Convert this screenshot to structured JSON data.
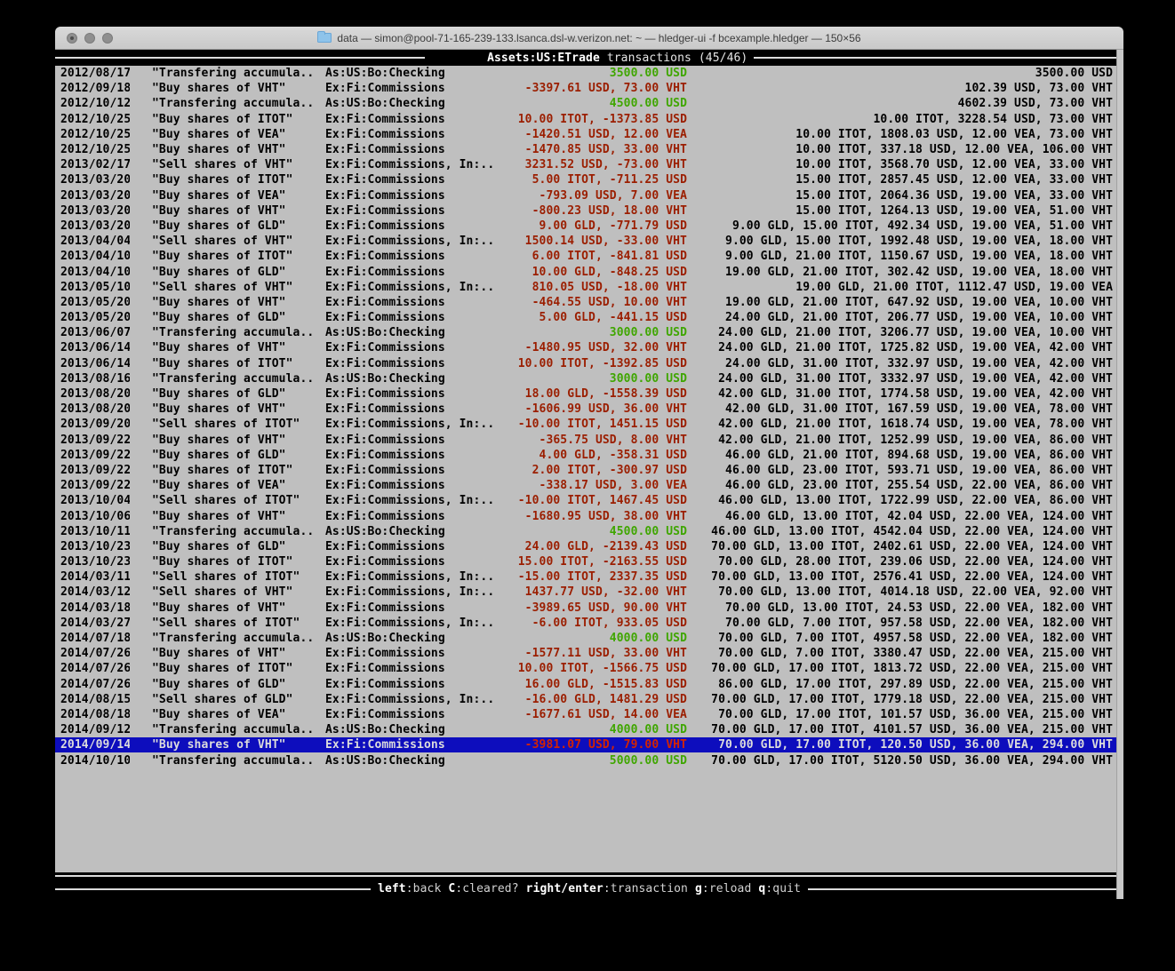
{
  "window": {
    "title": "data — simon@pool-71-165-239-133.lsanca.dsl-w.verizon.net: ~ — hledger-ui -f bcexample.hledger — 150×56",
    "buttons": [
      "close",
      "minimize",
      "zoom"
    ]
  },
  "header": {
    "account": "Assets:US:ETrade",
    "suffix": "transactions (45/46)"
  },
  "footer": {
    "hints": [
      {
        "key": "left",
        "label": ":back"
      },
      {
        "key": "C",
        "label": ":cleared?"
      },
      {
        "key": "right/enter",
        "label": ":transaction"
      },
      {
        "key": "g",
        "label": ":reload"
      },
      {
        "key": "q",
        "label": ":quit"
      }
    ]
  },
  "colors": {
    "terminal_bg": "#bfbfbf",
    "bar_bg": "#000000",
    "bar_fg": "#ffffff",
    "text": "#000000",
    "amount_positive": "#3fa600",
    "amount_negative": "#9b1e00",
    "selected_bg": "#0d0dbd",
    "selected_fg": "#dcdcdc",
    "selected_negative": "#d42400"
  },
  "transactions": [
    {
      "date": "2012/08/17",
      "description": "\"Transfering accumula..",
      "account": "As:US:Bo:Checking",
      "change": "3500.00 USD",
      "change_color": "green",
      "balance": "3500.00 USD"
    },
    {
      "date": "2012/09/18",
      "description": "\"Buy shares of VHT\"",
      "account": "Ex:Fi:Commissions",
      "change": "-3397.61 USD, 73.00 VHT",
      "change_color": "red",
      "balance": "102.39 USD, 73.00 VHT"
    },
    {
      "date": "2012/10/12",
      "description": "\"Transfering accumula..",
      "account": "As:US:Bo:Checking",
      "change": "4500.00 USD",
      "change_color": "green",
      "balance": "4602.39 USD, 73.00 VHT"
    },
    {
      "date": "2012/10/25",
      "description": "\"Buy shares of ITOT\"",
      "account": "Ex:Fi:Commissions",
      "change": "10.00 ITOT, -1373.85 USD",
      "change_color": "red",
      "balance": "10.00 ITOT, 3228.54 USD, 73.00 VHT"
    },
    {
      "date": "2012/10/25",
      "description": "\"Buy shares of VEA\"",
      "account": "Ex:Fi:Commissions",
      "change": "-1420.51 USD, 12.00 VEA",
      "change_color": "red",
      "balance": "10.00 ITOT, 1808.03 USD, 12.00 VEA, 73.00 VHT"
    },
    {
      "date": "2012/10/25",
      "description": "\"Buy shares of VHT\"",
      "account": "Ex:Fi:Commissions",
      "change": "-1470.85 USD, 33.00 VHT",
      "change_color": "red",
      "balance": "10.00 ITOT, 337.18 USD, 12.00 VEA, 106.00 VHT"
    },
    {
      "date": "2013/02/17",
      "description": "\"Sell shares of VHT\"",
      "account": "Ex:Fi:Commissions, In:..",
      "change": "3231.52 USD, -73.00 VHT",
      "change_color": "red",
      "balance": "10.00 ITOT, 3568.70 USD, 12.00 VEA, 33.00 VHT"
    },
    {
      "date": "2013/03/20",
      "description": "\"Buy shares of ITOT\"",
      "account": "Ex:Fi:Commissions",
      "change": "5.00 ITOT, -711.25 USD",
      "change_color": "red",
      "balance": "15.00 ITOT, 2857.45 USD, 12.00 VEA, 33.00 VHT"
    },
    {
      "date": "2013/03/20",
      "description": "\"Buy shares of VEA\"",
      "account": "Ex:Fi:Commissions",
      "change": "-793.09 USD, 7.00 VEA",
      "change_color": "red",
      "balance": "15.00 ITOT, 2064.36 USD, 19.00 VEA, 33.00 VHT"
    },
    {
      "date": "2013/03/20",
      "description": "\"Buy shares of VHT\"",
      "account": "Ex:Fi:Commissions",
      "change": "-800.23 USD, 18.00 VHT",
      "change_color": "red",
      "balance": "15.00 ITOT, 1264.13 USD, 19.00 VEA, 51.00 VHT"
    },
    {
      "date": "2013/03/20",
      "description": "\"Buy shares of GLD\"",
      "account": "Ex:Fi:Commissions",
      "change": "9.00 GLD, -771.79 USD",
      "change_color": "red",
      "balance": "9.00 GLD, 15.00 ITOT, 492.34 USD, 19.00 VEA, 51.00 VHT"
    },
    {
      "date": "2013/04/04",
      "description": "\"Sell shares of VHT\"",
      "account": "Ex:Fi:Commissions, In:..",
      "change": "1500.14 USD, -33.00 VHT",
      "change_color": "red",
      "balance": "9.00 GLD, 15.00 ITOT, 1992.48 USD, 19.00 VEA, 18.00 VHT"
    },
    {
      "date": "2013/04/10",
      "description": "\"Buy shares of ITOT\"",
      "account": "Ex:Fi:Commissions",
      "change": "6.00 ITOT, -841.81 USD",
      "change_color": "red",
      "balance": "9.00 GLD, 21.00 ITOT, 1150.67 USD, 19.00 VEA, 18.00 VHT"
    },
    {
      "date": "2013/04/10",
      "description": "\"Buy shares of GLD\"",
      "account": "Ex:Fi:Commissions",
      "change": "10.00 GLD, -848.25 USD",
      "change_color": "red",
      "balance": "19.00 GLD, 21.00 ITOT, 302.42 USD, 19.00 VEA, 18.00 VHT"
    },
    {
      "date": "2013/05/10",
      "description": "\"Sell shares of VHT\"",
      "account": "Ex:Fi:Commissions, In:..",
      "change": "810.05 USD, -18.00 VHT",
      "change_color": "red",
      "balance": "19.00 GLD, 21.00 ITOT, 1112.47 USD, 19.00 VEA"
    },
    {
      "date": "2013/05/20",
      "description": "\"Buy shares of VHT\"",
      "account": "Ex:Fi:Commissions",
      "change": "-464.55 USD, 10.00 VHT",
      "change_color": "red",
      "balance": "19.00 GLD, 21.00 ITOT, 647.92 USD, 19.00 VEA, 10.00 VHT"
    },
    {
      "date": "2013/05/20",
      "description": "\"Buy shares of GLD\"",
      "account": "Ex:Fi:Commissions",
      "change": "5.00 GLD, -441.15 USD",
      "change_color": "red",
      "balance": "24.00 GLD, 21.00 ITOT, 206.77 USD, 19.00 VEA, 10.00 VHT"
    },
    {
      "date": "2013/06/07",
      "description": "\"Transfering accumula..",
      "account": "As:US:Bo:Checking",
      "change": "3000.00 USD",
      "change_color": "green",
      "balance": "24.00 GLD, 21.00 ITOT, 3206.77 USD, 19.00 VEA, 10.00 VHT"
    },
    {
      "date": "2013/06/14",
      "description": "\"Buy shares of VHT\"",
      "account": "Ex:Fi:Commissions",
      "change": "-1480.95 USD, 32.00 VHT",
      "change_color": "red",
      "balance": "24.00 GLD, 21.00 ITOT, 1725.82 USD, 19.00 VEA, 42.00 VHT"
    },
    {
      "date": "2013/06/14",
      "description": "\"Buy shares of ITOT\"",
      "account": "Ex:Fi:Commissions",
      "change": "10.00 ITOT, -1392.85 USD",
      "change_color": "red",
      "balance": "24.00 GLD, 31.00 ITOT, 332.97 USD, 19.00 VEA, 42.00 VHT"
    },
    {
      "date": "2013/08/16",
      "description": "\"Transfering accumula..",
      "account": "As:US:Bo:Checking",
      "change": "3000.00 USD",
      "change_color": "green",
      "balance": "24.00 GLD, 31.00 ITOT, 3332.97 USD, 19.00 VEA, 42.00 VHT"
    },
    {
      "date": "2013/08/20",
      "description": "\"Buy shares of GLD\"",
      "account": "Ex:Fi:Commissions",
      "change": "18.00 GLD, -1558.39 USD",
      "change_color": "red",
      "balance": "42.00 GLD, 31.00 ITOT, 1774.58 USD, 19.00 VEA, 42.00 VHT"
    },
    {
      "date": "2013/08/20",
      "description": "\"Buy shares of VHT\"",
      "account": "Ex:Fi:Commissions",
      "change": "-1606.99 USD, 36.00 VHT",
      "change_color": "red",
      "balance": "42.00 GLD, 31.00 ITOT, 167.59 USD, 19.00 VEA, 78.00 VHT"
    },
    {
      "date": "2013/09/20",
      "description": "\"Sell shares of ITOT\"",
      "account": "Ex:Fi:Commissions, In:..",
      "change": "-10.00 ITOT, 1451.15 USD",
      "change_color": "red",
      "balance": "42.00 GLD, 21.00 ITOT, 1618.74 USD, 19.00 VEA, 78.00 VHT"
    },
    {
      "date": "2013/09/22",
      "description": "\"Buy shares of VHT\"",
      "account": "Ex:Fi:Commissions",
      "change": "-365.75 USD, 8.00 VHT",
      "change_color": "red",
      "balance": "42.00 GLD, 21.00 ITOT, 1252.99 USD, 19.00 VEA, 86.00 VHT"
    },
    {
      "date": "2013/09/22",
      "description": "\"Buy shares of GLD\"",
      "account": "Ex:Fi:Commissions",
      "change": "4.00 GLD, -358.31 USD",
      "change_color": "red",
      "balance": "46.00 GLD, 21.00 ITOT, 894.68 USD, 19.00 VEA, 86.00 VHT"
    },
    {
      "date": "2013/09/22",
      "description": "\"Buy shares of ITOT\"",
      "account": "Ex:Fi:Commissions",
      "change": "2.00 ITOT, -300.97 USD",
      "change_color": "red",
      "balance": "46.00 GLD, 23.00 ITOT, 593.71 USD, 19.00 VEA, 86.00 VHT"
    },
    {
      "date": "2013/09/22",
      "description": "\"Buy shares of VEA\"",
      "account": "Ex:Fi:Commissions",
      "change": "-338.17 USD, 3.00 VEA",
      "change_color": "red",
      "balance": "46.00 GLD, 23.00 ITOT, 255.54 USD, 22.00 VEA, 86.00 VHT"
    },
    {
      "date": "2013/10/04",
      "description": "\"Sell shares of ITOT\"",
      "account": "Ex:Fi:Commissions, In:..",
      "change": "-10.00 ITOT, 1467.45 USD",
      "change_color": "red",
      "balance": "46.00 GLD, 13.00 ITOT, 1722.99 USD, 22.00 VEA, 86.00 VHT"
    },
    {
      "date": "2013/10/06",
      "description": "\"Buy shares of VHT\"",
      "account": "Ex:Fi:Commissions",
      "change": "-1680.95 USD, 38.00 VHT",
      "change_color": "red",
      "balance": "46.00 GLD, 13.00 ITOT, 42.04 USD, 22.00 VEA, 124.00 VHT"
    },
    {
      "date": "2013/10/11",
      "description": "\"Transfering accumula..",
      "account": "As:US:Bo:Checking",
      "change": "4500.00 USD",
      "change_color": "green",
      "balance": "46.00 GLD, 13.00 ITOT, 4542.04 USD, 22.00 VEA, 124.00 VHT"
    },
    {
      "date": "2013/10/23",
      "description": "\"Buy shares of GLD\"",
      "account": "Ex:Fi:Commissions",
      "change": "24.00 GLD, -2139.43 USD",
      "change_color": "red",
      "balance": "70.00 GLD, 13.00 ITOT, 2402.61 USD, 22.00 VEA, 124.00 VHT"
    },
    {
      "date": "2013/10/23",
      "description": "\"Buy shares of ITOT\"",
      "account": "Ex:Fi:Commissions",
      "change": "15.00 ITOT, -2163.55 USD",
      "change_color": "red",
      "balance": "70.00 GLD, 28.00 ITOT, 239.06 USD, 22.00 VEA, 124.00 VHT"
    },
    {
      "date": "2014/03/11",
      "description": "\"Sell shares of ITOT\"",
      "account": "Ex:Fi:Commissions, In:..",
      "change": "-15.00 ITOT, 2337.35 USD",
      "change_color": "red",
      "balance": "70.00 GLD, 13.00 ITOT, 2576.41 USD, 22.00 VEA, 124.00 VHT"
    },
    {
      "date": "2014/03/12",
      "description": "\"Sell shares of VHT\"",
      "account": "Ex:Fi:Commissions, In:..",
      "change": "1437.77 USD, -32.00 VHT",
      "change_color": "red",
      "balance": "70.00 GLD, 13.00 ITOT, 4014.18 USD, 22.00 VEA, 92.00 VHT"
    },
    {
      "date": "2014/03/18",
      "description": "\"Buy shares of VHT\"",
      "account": "Ex:Fi:Commissions",
      "change": "-3989.65 USD, 90.00 VHT",
      "change_color": "red",
      "balance": "70.00 GLD, 13.00 ITOT, 24.53 USD, 22.00 VEA, 182.00 VHT"
    },
    {
      "date": "2014/03/27",
      "description": "\"Sell shares of ITOT\"",
      "account": "Ex:Fi:Commissions, In:..",
      "change": "-6.00 ITOT, 933.05 USD",
      "change_color": "red",
      "balance": "70.00 GLD, 7.00 ITOT, 957.58 USD, 22.00 VEA, 182.00 VHT"
    },
    {
      "date": "2014/07/18",
      "description": "\"Transfering accumula..",
      "account": "As:US:Bo:Checking",
      "change": "4000.00 USD",
      "change_color": "green",
      "balance": "70.00 GLD, 7.00 ITOT, 4957.58 USD, 22.00 VEA, 182.00 VHT"
    },
    {
      "date": "2014/07/26",
      "description": "\"Buy shares of VHT\"",
      "account": "Ex:Fi:Commissions",
      "change": "-1577.11 USD, 33.00 VHT",
      "change_color": "red",
      "balance": "70.00 GLD, 7.00 ITOT, 3380.47 USD, 22.00 VEA, 215.00 VHT"
    },
    {
      "date": "2014/07/26",
      "description": "\"Buy shares of ITOT\"",
      "account": "Ex:Fi:Commissions",
      "change": "10.00 ITOT, -1566.75 USD",
      "change_color": "red",
      "balance": "70.00 GLD, 17.00 ITOT, 1813.72 USD, 22.00 VEA, 215.00 VHT"
    },
    {
      "date": "2014/07/26",
      "description": "\"Buy shares of GLD\"",
      "account": "Ex:Fi:Commissions",
      "change": "16.00 GLD, -1515.83 USD",
      "change_color": "red",
      "balance": "86.00 GLD, 17.00 ITOT, 297.89 USD, 22.00 VEA, 215.00 VHT"
    },
    {
      "date": "2014/08/15",
      "description": "\"Sell shares of GLD\"",
      "account": "Ex:Fi:Commissions, In:..",
      "change": "-16.00 GLD, 1481.29 USD",
      "change_color": "red",
      "balance": "70.00 GLD, 17.00 ITOT, 1779.18 USD, 22.00 VEA, 215.00 VHT"
    },
    {
      "date": "2014/08/18",
      "description": "\"Buy shares of VEA\"",
      "account": "Ex:Fi:Commissions",
      "change": "-1677.61 USD, 14.00 VEA",
      "change_color": "red",
      "balance": "70.00 GLD, 17.00 ITOT, 101.57 USD, 36.00 VEA, 215.00 VHT"
    },
    {
      "date": "2014/09/12",
      "description": "\"Transfering accumula..",
      "account": "As:US:Bo:Checking",
      "change": "4000.00 USD",
      "change_color": "green",
      "balance": "70.00 GLD, 17.00 ITOT, 4101.57 USD, 36.00 VEA, 215.00 VHT"
    },
    {
      "date": "2014/09/14",
      "description": "\"Buy shares of VHT\"",
      "account": "Ex:Fi:Commissions",
      "change": "-3981.07 USD, 79.00 VHT",
      "change_color": "red",
      "balance": "70.00 GLD, 17.00 ITOT, 120.50 USD, 36.00 VEA, 294.00 VHT",
      "selected": true
    },
    {
      "date": "2014/10/10",
      "description": "\"Transfering accumula..",
      "account": "As:US:Bo:Checking",
      "change": "5000.00 USD",
      "change_color": "green",
      "balance": "70.00 GLD, 17.00 ITOT, 5120.50 USD, 36.00 VEA, 294.00 VHT"
    }
  ]
}
